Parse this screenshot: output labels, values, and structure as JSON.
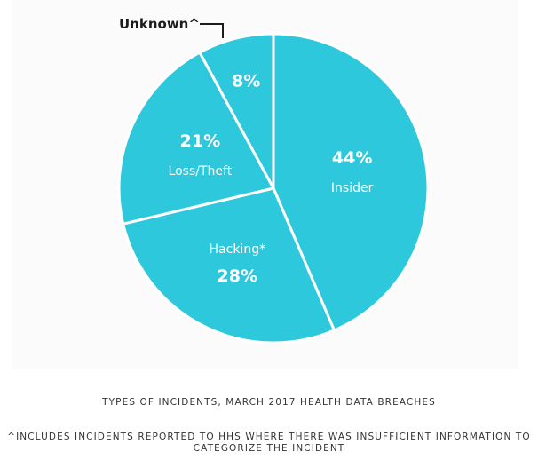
{
  "chart_data": {
    "type": "pie",
    "slices": [
      {
        "label": "Insider",
        "value": 44,
        "value_label": "44%"
      },
      {
        "label": "Hacking*",
        "value": 28,
        "value_label": "28%"
      },
      {
        "label": "Loss/Theft",
        "value": 21,
        "value_label": "21%"
      },
      {
        "label": "Unknown^",
        "value": 8,
        "value_label": "8%"
      }
    ],
    "slice_color": "#2ec8dc",
    "separator_color": "#ffffff",
    "callout_label": "Unknown^",
    "title": "TYPES OF INCIDENTS, MARCH 2017 HEALTH DATA BREACHES",
    "footnote": "^INCLUDES INCIDENTS REPORTED TO HHS WHERE THERE WAS INSUFFICIENT INFORMATION TO CATEGORIZE THE INCIDENT",
    "legend": "none"
  }
}
